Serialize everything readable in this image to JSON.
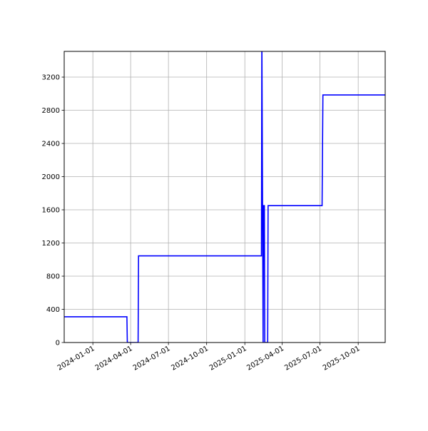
{
  "chart_data": {
    "type": "line",
    "title": "",
    "xlabel": "",
    "ylabel": "",
    "xlim": [
      "2023-10-24",
      "2025-12-05"
    ],
    "ylim": [
      0,
      3510
    ],
    "grid": true,
    "line_color": "#0000ff",
    "grid_color": "#b0b0b0",
    "x_ticks": [
      "2024-01-01",
      "2024-04-01",
      "2024-07-01",
      "2024-10-01",
      "2025-01-01",
      "2025-04-01",
      "2025-07-01",
      "2025-10-01"
    ],
    "y_ticks": [
      0,
      400,
      800,
      1200,
      1600,
      2000,
      2400,
      2800,
      3200
    ],
    "series": [
      {
        "points": [
          [
            "2023-10-24",
            310
          ],
          [
            "2024-03-23",
            310
          ],
          [
            "2024-03-24",
            0
          ],
          [
            "2024-04-19",
            0
          ],
          [
            "2024-04-20",
            1045
          ],
          [
            "2025-02-10",
            1045
          ],
          [
            "2025-02-11",
            3700
          ],
          [
            "2025-02-14",
            0
          ],
          [
            "2025-02-15",
            1650
          ],
          [
            "2025-02-17",
            1650
          ],
          [
            "2025-02-18",
            0
          ],
          [
            "2025-02-25",
            0
          ],
          [
            "2025-02-26",
            1650
          ],
          [
            "2025-07-06",
            1650
          ],
          [
            "2025-07-08",
            2985
          ],
          [
            "2025-12-05",
            2985
          ]
        ]
      }
    ]
  }
}
